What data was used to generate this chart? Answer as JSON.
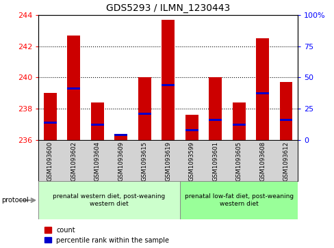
{
  "title": "GDS5293 / ILMN_1230443",
  "samples": [
    "GSM1093600",
    "GSM1093602",
    "GSM1093604",
    "GSM1093609",
    "GSM1093615",
    "GSM1093619",
    "GSM1093599",
    "GSM1093601",
    "GSM1093605",
    "GSM1093608",
    "GSM1093612"
  ],
  "bar_heights": [
    239.0,
    242.7,
    238.4,
    236.25,
    240.0,
    243.7,
    237.6,
    240.0,
    238.4,
    242.5,
    239.7
  ],
  "blue_positions": [
    237.1,
    239.3,
    237.0,
    236.35,
    237.7,
    239.5,
    236.65,
    237.3,
    237.0,
    239.0,
    237.3
  ],
  "ylim_left": [
    236,
    244
  ],
  "yticks_left": [
    236,
    238,
    240,
    242,
    244
  ],
  "grid_yticks": [
    238,
    240,
    242
  ],
  "bar_color": "#cc0000",
  "blue_color": "#0000cc",
  "bar_width": 0.55,
  "group1_label": "prenatal western diet, post-weaning\nwestern diet",
  "group2_label": "prenatal low-fat diet, post-weaning\nwestern diet",
  "group1_color": "#ccffcc",
  "group2_color": "#99ff99",
  "sample_bg_color": "#d3d3d3",
  "legend_count": "count",
  "legend_percentile": "percentile rank within the sample",
  "group1_range": [
    0,
    5
  ],
  "group2_range": [
    6,
    10
  ],
  "right_ytick_pcts": [
    0,
    25,
    50,
    75,
    100
  ],
  "right_ytick_labels": [
    "0",
    "25",
    "50",
    "75",
    "100%"
  ]
}
